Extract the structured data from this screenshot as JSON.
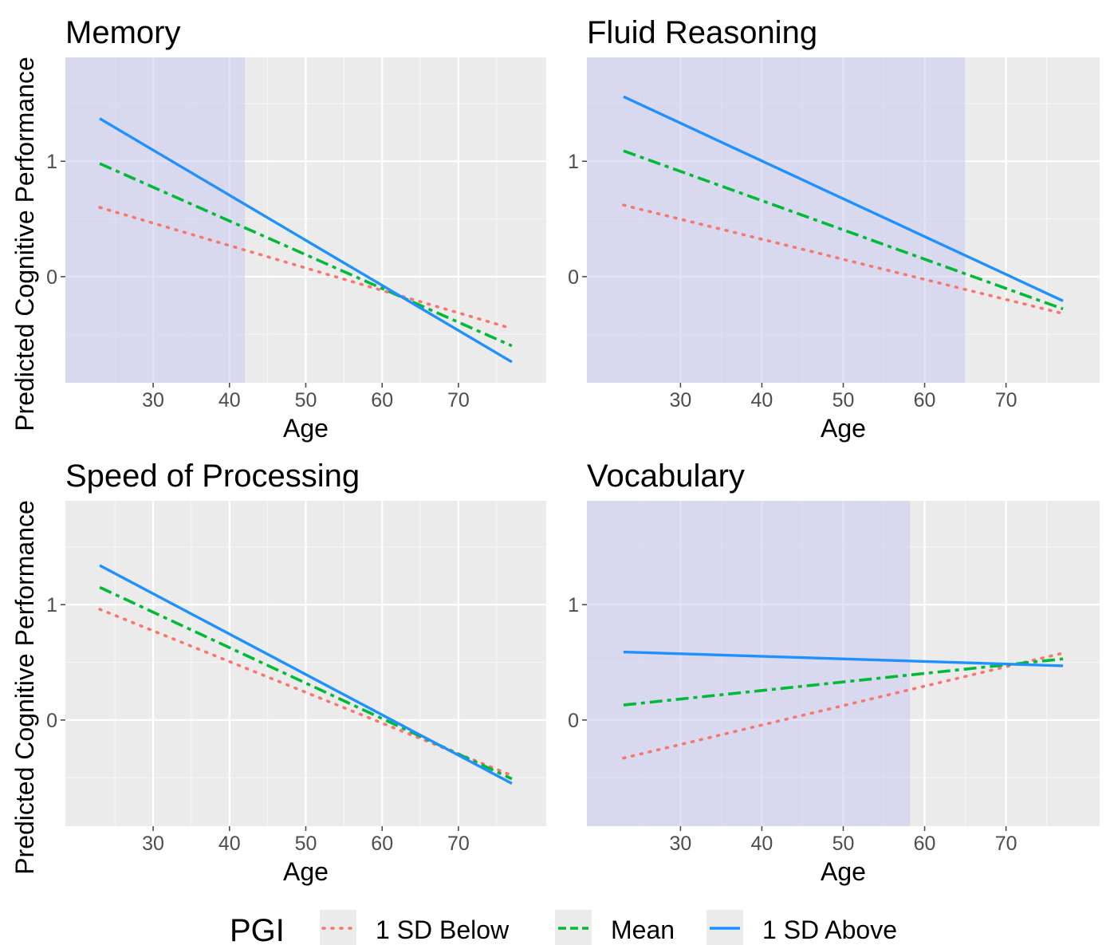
{
  "chart_data": {
    "type": "line",
    "ylabel": "Predicted Cognitive Performance",
    "xlabel": "Age",
    "xlim": [
      18.5,
      81.5
    ],
    "ylim": [
      -0.92,
      1.9
    ],
    "x_ticks": [
      30,
      40,
      50,
      60,
      70
    ],
    "y_ticks": [
      0,
      1
    ],
    "legend": {
      "title": "PGI",
      "position": "bottom",
      "entries": [
        {
          "label": "1 SD Below",
          "color": "#F8766D",
          "style": "dotted"
        },
        {
          "label": "Mean",
          "color": "#00BA38",
          "style": "dashdot"
        },
        {
          "label": "1 SD Above",
          "color": "#1E90FF",
          "style": "solid"
        }
      ]
    },
    "shade_color": "#c8c8f0",
    "grid": true,
    "panels": [
      {
        "title": "Memory",
        "shaded_region": [
          18.5,
          42
        ],
        "series": [
          {
            "name": "1 SD Below",
            "x": [
              23,
              77
            ],
            "y": [
              0.6,
              -0.45
            ]
          },
          {
            "name": "Mean",
            "x": [
              23,
              77
            ],
            "y": [
              0.98,
              -0.6
            ]
          },
          {
            "name": "1 SD Above",
            "x": [
              23,
              77
            ],
            "y": [
              1.37,
              -0.74
            ]
          }
        ]
      },
      {
        "title": "Fluid Reasoning",
        "shaded_region": [
          18.5,
          65
        ],
        "series": [
          {
            "name": "1 SD Below",
            "x": [
              23,
              77
            ],
            "y": [
              0.62,
              -0.32
            ]
          },
          {
            "name": "Mean",
            "x": [
              23,
              77
            ],
            "y": [
              1.09,
              -0.28
            ]
          },
          {
            "name": "1 SD Above",
            "x": [
              23,
              77
            ],
            "y": [
              1.56,
              -0.21
            ]
          }
        ]
      },
      {
        "title": "Speed of Processing",
        "shaded_region": null,
        "series": [
          {
            "name": "1 SD Below",
            "x": [
              23,
              77
            ],
            "y": [
              0.96,
              -0.48
            ]
          },
          {
            "name": "Mean",
            "x": [
              23,
              77
            ],
            "y": [
              1.15,
              -0.51
            ]
          },
          {
            "name": "1 SD Above",
            "x": [
              23,
              77
            ],
            "y": [
              1.34,
              -0.55
            ]
          }
        ]
      },
      {
        "title": "Vocabulary",
        "shaded_region": [
          18.5,
          58.2
        ],
        "series": [
          {
            "name": "1 SD Below",
            "x": [
              23,
              77
            ],
            "y": [
              -0.33,
              0.58
            ]
          },
          {
            "name": "Mean",
            "x": [
              23,
              77
            ],
            "y": [
              0.13,
              0.53
            ]
          },
          {
            "name": "1 SD Above",
            "x": [
              23,
              77
            ],
            "y": [
              0.59,
              0.47
            ]
          }
        ]
      }
    ]
  }
}
